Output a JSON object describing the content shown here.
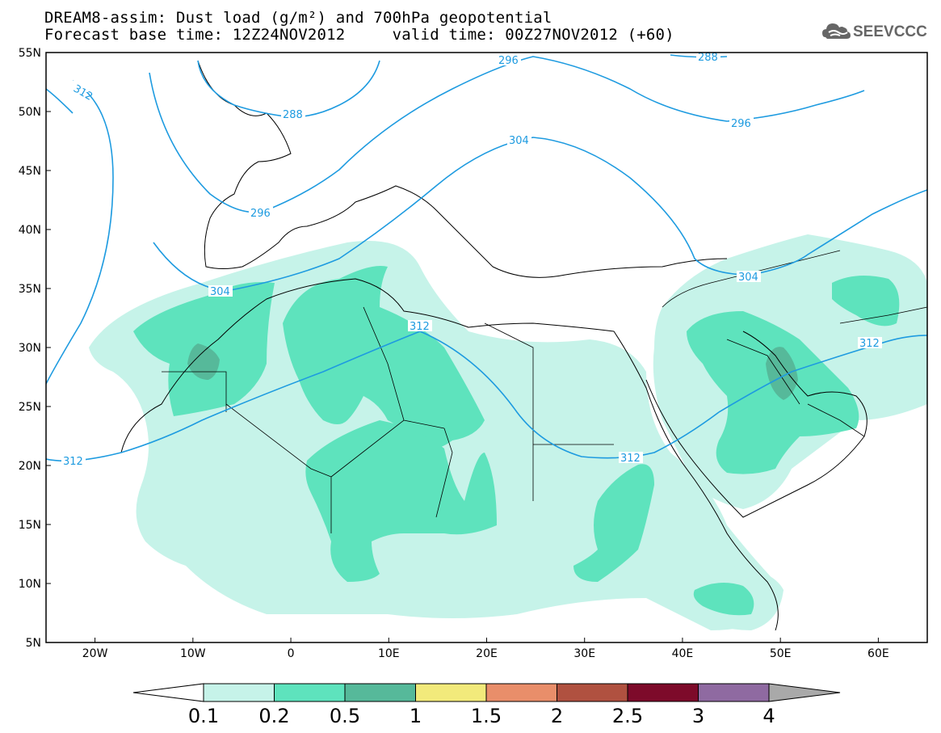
{
  "title": {
    "line1": "DREAM8-assim: Dust load (g/m²) and 700hPa geopotential",
    "line2": "Forecast base time: 12Z24NOV2012     valid time: 00Z27NOV2012 (+60)"
  },
  "logo": {
    "text": "SEEVCCC",
    "icon": "cloud-icon"
  },
  "map": {
    "lon_ticks": [
      "20W",
      "10W",
      "0",
      "10E",
      "20E",
      "30E",
      "40E",
      "50E",
      "60E"
    ],
    "lat_ticks": [
      "55N",
      "50N",
      "45N",
      "40N",
      "35N",
      "30N",
      "25N",
      "20N",
      "15N",
      "10N",
      "5N"
    ],
    "lon_range": [
      -25,
      65
    ],
    "lat_range": [
      5,
      55
    ],
    "geopotential_contours": [
      "312",
      "288",
      "296",
      "296",
      "296",
      "288",
      "304",
      "304",
      "312",
      "312",
      "312",
      "312"
    ]
  },
  "colorbar": {
    "levels": [
      "0.1",
      "0.2",
      "0.5",
      "1",
      "1.5",
      "2",
      "2.5",
      "3",
      "4"
    ],
    "colors": [
      "#c6f3e9",
      "#5ee3bd",
      "#56b99a",
      "#f2ea7b",
      "#e98e6a",
      "#b05140",
      "#7d0a2a",
      "#8f6aa1",
      "#a9a9a9"
    ]
  },
  "chart_data": {
    "type": "heatmap",
    "title": "DREAM8-assim: Dust load (g/m²) and 700hPa geopotential",
    "xlabel": "",
    "ylabel": "",
    "xlim": [
      -25,
      65
    ],
    "ylim": [
      5,
      55
    ],
    "legend_levels": [
      0.1,
      0.2,
      0.5,
      1,
      1.5,
      2,
      2.5,
      3,
      4
    ],
    "contour_labels": [
      312,
      288,
      296,
      296,
      296,
      288,
      304,
      304,
      312,
      312,
      312,
      312
    ]
  }
}
